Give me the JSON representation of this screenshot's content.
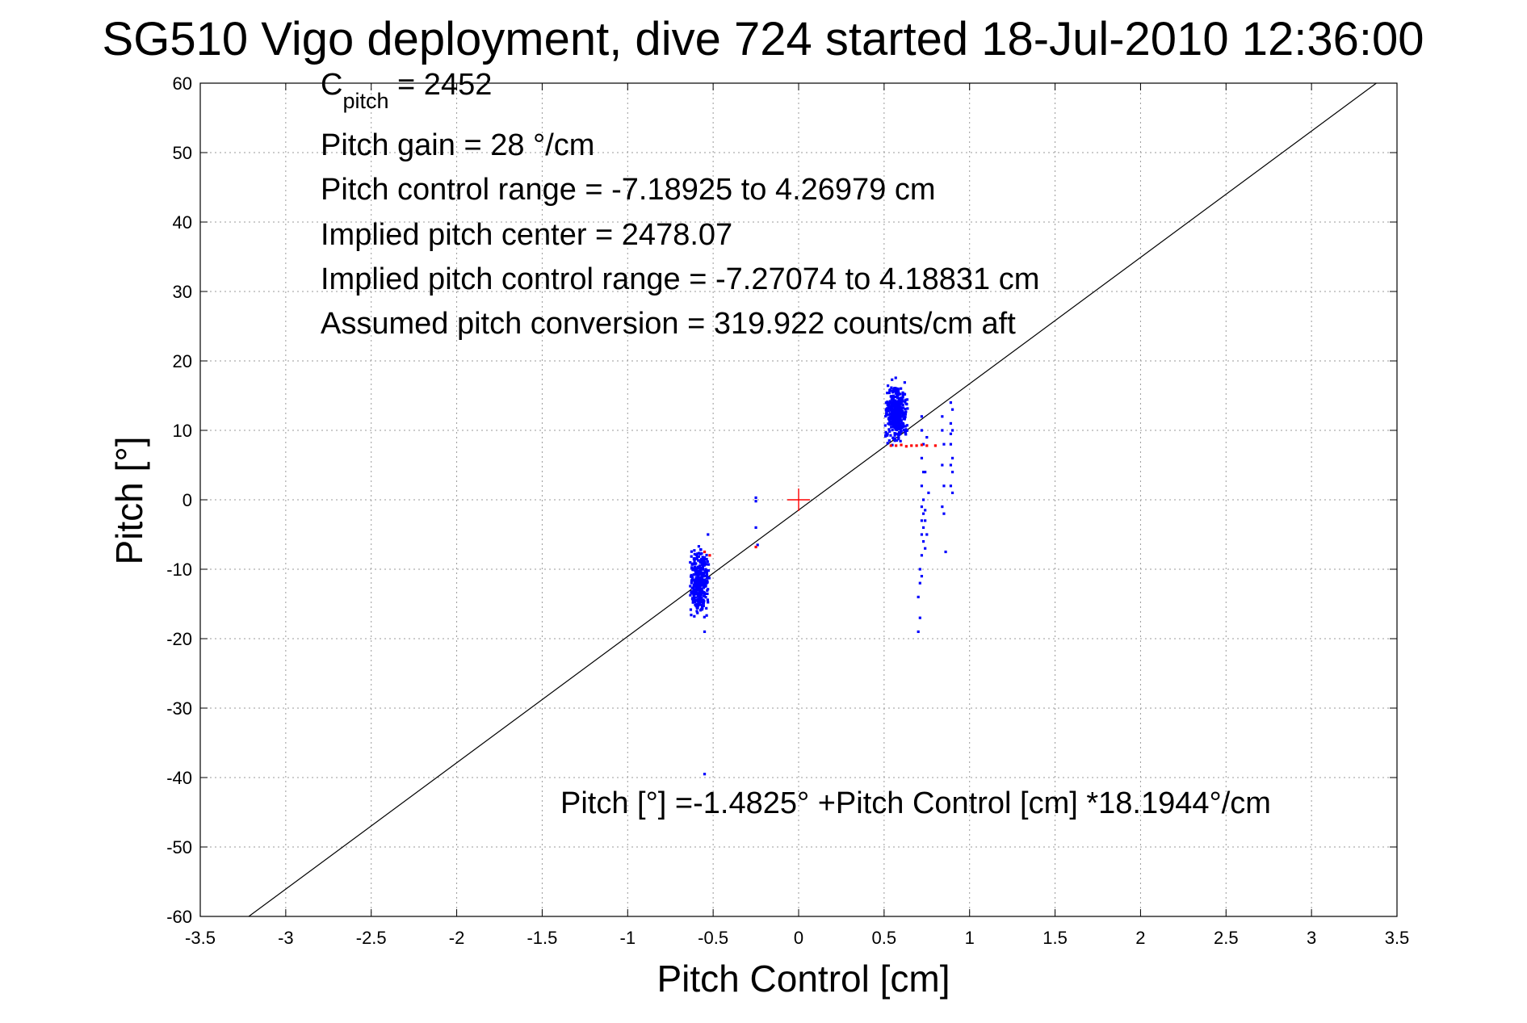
{
  "chart_data": {
    "type": "scatter",
    "title": "SG510 Vigo deployment, dive 724 started 18-Jul-2010 12:36:00",
    "xlabel": "Pitch Control [cm]",
    "ylabel": "Pitch [°]",
    "xlim": [
      -3.5,
      3.5
    ],
    "ylim": [
      -60,
      60
    ],
    "xticks": [
      "-3.5",
      "-3",
      "-2.5",
      "-2",
      "-1.5",
      "-1",
      "-0.5",
      "0",
      "0.5",
      "1",
      "1.5",
      "2",
      "2.5",
      "3",
      "3.5"
    ],
    "yticks": [
      "60",
      "50",
      "40",
      "30",
      "20",
      "10",
      "0",
      "-10",
      "-20",
      "-30",
      "-40",
      "-50",
      "-60"
    ],
    "grid": true,
    "annotations": {
      "cpitch_main": "C",
      "cpitch_sub": "pitch",
      "cpitch_value": " = 2452",
      "pitch_gain": "Pitch gain = 28 °/cm",
      "pitch_control_range": "Pitch control range = -7.18925 to 4.26979 cm",
      "implied_pitch_center": "Implied pitch center = 2478.07",
      "implied_pitch_control_range": "Implied pitch control range = -7.27074 to 4.18831 cm",
      "assumed_pitch_conversion": "Assumed pitch conversion = 319.922 counts/cm aft",
      "fit_equation": "Pitch [°] =-1.4825° +Pitch Control [cm] *18.1944°/cm"
    },
    "fit_line": {
      "intercept": -1.4825,
      "slope": 18.1944
    },
    "center_marker": {
      "x": 0,
      "y": 0
    },
    "series": [
      {
        "color": "#0000ff",
        "clusters": [
          {
            "x_range": [
              -0.64,
              -0.52
            ],
            "y_range": [
              -18,
              -6
            ],
            "count": 360
          },
          {
            "x_range": [
              0.5,
              0.64
            ],
            "y_range": [
              7,
              18
            ],
            "count": 400
          }
        ],
        "points": [
          [
            -0.25,
            0.3
          ],
          [
            -0.25,
            -0.2
          ],
          [
            -0.25,
            -4
          ],
          [
            -0.24,
            -6.5
          ],
          [
            -0.55,
            -19
          ],
          [
            -0.55,
            -39.5
          ],
          [
            -0.53,
            -5
          ],
          [
            0.72,
            12
          ],
          [
            0.72,
            10
          ],
          [
            0.73,
            8
          ],
          [
            0.72,
            6
          ],
          [
            0.73,
            4
          ],
          [
            0.72,
            2
          ],
          [
            0.73,
            0
          ],
          [
            0.72,
            -1
          ],
          [
            0.73,
            -2
          ],
          [
            0.72,
            -3
          ],
          [
            0.73,
            -4
          ],
          [
            0.72,
            -5
          ],
          [
            0.73,
            -6
          ],
          [
            0.72,
            -8
          ],
          [
            0.71,
            -10
          ],
          [
            0.72,
            -11
          ],
          [
            0.71,
            -12
          ],
          [
            0.7,
            -14
          ],
          [
            0.71,
            -17
          ],
          [
            0.7,
            -19
          ],
          [
            0.74,
            -3
          ],
          [
            0.75,
            9
          ],
          [
            0.74,
            4
          ],
          [
            0.76,
            1
          ],
          [
            0.74,
            -1.5
          ],
          [
            0.75,
            -5
          ],
          [
            0.74,
            -7
          ],
          [
            0.84,
            12
          ],
          [
            0.85,
            8
          ],
          [
            0.84,
            5
          ],
          [
            0.85,
            2
          ],
          [
            0.84,
            -1
          ],
          [
            0.85,
            -2
          ],
          [
            0.86,
            -7.5
          ],
          [
            0.84,
            10
          ],
          [
            0.89,
            14
          ],
          [
            0.9,
            13
          ],
          [
            0.89,
            11
          ],
          [
            0.9,
            10
          ],
          [
            0.89,
            8
          ],
          [
            0.9,
            6
          ],
          [
            0.89,
            5
          ],
          [
            0.9,
            4
          ],
          [
            0.89,
            2
          ],
          [
            0.9,
            1
          ],
          [
            0.89,
            9.5
          ]
        ]
      },
      {
        "color": "#ff0000",
        "points": [
          [
            0.54,
            7.8
          ],
          [
            0.57,
            7.8
          ],
          [
            0.6,
            7.9
          ],
          [
            0.63,
            7.7
          ],
          [
            0.66,
            7.8
          ],
          [
            0.69,
            7.8
          ],
          [
            0.72,
            7.9
          ],
          [
            0.75,
            7.8
          ],
          [
            0.8,
            7.8
          ],
          [
            -0.55,
            -7.5
          ],
          [
            -0.52,
            -8
          ],
          [
            -0.25,
            -6.8
          ]
        ]
      }
    ]
  }
}
